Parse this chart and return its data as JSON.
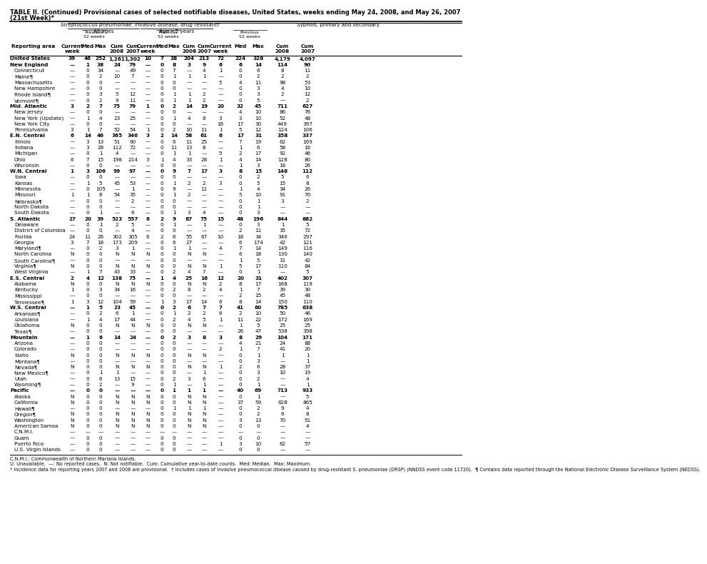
{
  "title_line1": "TABLE II. (Continued) Provisional cases of selected notifiable diseases, United States, weeks ending May 24, 2008, and May 26, 2007",
  "title_line2": "(21st Week)*",
  "col_group1": "Streptococcus pneumoniae, invasive disease, drug resistant†",
  "col_group1a": "All ages",
  "col_group1b": "Age <5 years",
  "col_group2": "Syphilis, primary and secondary",
  "rows": [
    [
      "United States",
      "39",
      "46",
      "252",
      "1,261",
      "1,302",
      "10",
      "7",
      "38",
      "204",
      "213",
      "72",
      "224",
      "328",
      "4,179",
      "4,097"
    ],
    [
      "New England",
      "—",
      "1",
      "38",
      "24",
      "79",
      "—",
      "0",
      "8",
      "3",
      "9",
      "6",
      "6",
      "14",
      "114",
      "90"
    ],
    [
      "Connecticut",
      "—",
      "0",
      "34",
      "—",
      "49",
      "—",
      "0",
      "7",
      "—",
      "4",
      "1",
      "0",
      "6",
      "8",
      "11"
    ],
    [
      "Maine¶",
      "—",
      "0",
      "2",
      "10",
      "7",
      "—",
      "0",
      "1",
      "1",
      "1",
      "—",
      "0",
      "2",
      "2",
      "2"
    ],
    [
      "Massachusetts",
      "—",
      "0",
      "0",
      "—",
      "—",
      "—",
      "0",
      "0",
      "—",
      "—",
      "5",
      "4",
      "11",
      "98",
      "53"
    ],
    [
      "New Hampshire",
      "—",
      "0",
      "0",
      "—",
      "—",
      "—",
      "0",
      "0",
      "—",
      "—",
      "—",
      "0",
      "3",
      "4",
      "10"
    ],
    [
      "Rhode Island¶",
      "—",
      "0",
      "3",
      "5",
      "12",
      "—",
      "0",
      "1",
      "1",
      "2",
      "—",
      "0",
      "3",
      "2",
      "12"
    ],
    [
      "Vermont¶",
      "—",
      "0",
      "2",
      "9",
      "11",
      "—",
      "0",
      "1",
      "1",
      "2",
      "—",
      "0",
      "5",
      "—",
      "2"
    ],
    [
      "Mid. Atlantic",
      "3",
      "2",
      "7",
      "75",
      "79",
      "1",
      "0",
      "2",
      "14",
      "19",
      "20",
      "32",
      "45",
      "711",
      "627"
    ],
    [
      "New Jersey",
      "—",
      "0",
      "0",
      "—",
      "—",
      "—",
      "0",
      "0",
      "—",
      "—",
      "—",
      "4",
      "10",
      "86",
      "76"
    ],
    [
      "New York (Upstate)",
      "—",
      "1",
      "4",
      "23",
      "25",
      "—",
      "0",
      "1",
      "4",
      "8",
      "3",
      "3",
      "10",
      "52",
      "48"
    ],
    [
      "New York City",
      "—",
      "0",
      "0",
      "—",
      "—",
      "—",
      "0",
      "0",
      "—",
      "—",
      "16",
      "17",
      "30",
      "449",
      "397"
    ],
    [
      "Pennsylvania",
      "3",
      "1",
      "7",
      "52",
      "54",
      "1",
      "0",
      "2",
      "10",
      "11",
      "1",
      "5",
      "12",
      "124",
      "106"
    ],
    [
      "E.N. Central",
      "6",
      "14",
      "46",
      "365",
      "346",
      "3",
      "2",
      "14",
      "58",
      "61",
      "6",
      "17",
      "31",
      "358",
      "337"
    ],
    [
      "Illinois",
      "—",
      "3",
      "13",
      "51",
      "60",
      "—",
      "0",
      "6",
      "11",
      "25",
      "—",
      "7",
      "19",
      "62",
      "169"
    ],
    [
      "Indiana",
      "—",
      "3",
      "28",
      "112",
      "72",
      "—",
      "0",
      "11",
      "13",
      "8",
      "—",
      "1",
      "6",
      "58",
      "16"
    ],
    [
      "Michigan",
      "—",
      "0",
      "1",
      "4",
      "—",
      "—",
      "0",
      "1",
      "1",
      "—",
      "5",
      "2",
      "17",
      "92",
      "46"
    ],
    [
      "Ohio",
      "6",
      "7",
      "15",
      "198",
      "214",
      "3",
      "1",
      "4",
      "33",
      "28",
      "1",
      "4",
      "14",
      "128",
      "80"
    ],
    [
      "Wisconsin",
      "—",
      "0",
      "0",
      "—",
      "—",
      "—",
      "0",
      "0",
      "—",
      "—",
      "—",
      "1",
      "3",
      "18",
      "26"
    ],
    [
      "W.N. Central",
      "1",
      "3",
      "106",
      "99",
      "97",
      "—",
      "0",
      "9",
      "7",
      "17",
      "3",
      "8",
      "15",
      "148",
      "112"
    ],
    [
      "Iowa",
      "—",
      "0",
      "0",
      "—",
      "—",
      "—",
      "0",
      "0",
      "—",
      "—",
      "—",
      "0",
      "2",
      "5",
      "6"
    ],
    [
      "Kansas",
      "—",
      "1",
      "5",
      "45",
      "53",
      "—",
      "0",
      "1",
      "2",
      "2",
      "3",
      "0",
      "5",
      "15",
      "8"
    ],
    [
      "Minnesota",
      "—",
      "0",
      "105",
      "—",
      "1",
      "—",
      "0",
      "9",
      "—",
      "11",
      "—",
      "1",
      "4",
      "34",
      "26"
    ],
    [
      "Missouri",
      "1",
      "1",
      "8",
      "54",
      "35",
      "—",
      "0",
      "1",
      "2",
      "—",
      "—",
      "5",
      "10",
      "91",
      "70"
    ],
    [
      "Nebraska¶",
      "—",
      "0",
      "0",
      "—",
      "2",
      "—",
      "0",
      "0",
      "—",
      "—",
      "—",
      "0",
      "1",
      "3",
      "2"
    ],
    [
      "North Dakota",
      "—",
      "0",
      "0",
      "—",
      "—",
      "—",
      "0",
      "0",
      "—",
      "—",
      "—",
      "0",
      "1",
      "—",
      "—"
    ],
    [
      "South Dakota",
      "—",
      "0",
      "1",
      "—",
      "6",
      "—",
      "0",
      "1",
      "3",
      "4",
      "—",
      "0",
      "3",
      "—",
      "—"
    ],
    [
      "S. Atlantic",
      "27",
      "20",
      "39",
      "523",
      "557",
      "6",
      "2",
      "9",
      "87",
      "75",
      "15",
      "48",
      "196",
      "844",
      "882"
    ],
    [
      "Delaware",
      "—",
      "0",
      "1",
      "2",
      "5",
      "—",
      "0",
      "1",
      "—",
      "1",
      "—",
      "0",
      "3",
      "1",
      "5"
    ],
    [
      "District of Columbia",
      "—",
      "0",
      "0",
      "—",
      "4",
      "—",
      "0",
      "0",
      "—",
      "—",
      "—",
      "2",
      "11",
      "35",
      "72"
    ],
    [
      "Florida",
      "24",
      "11",
      "26",
      "302",
      "305",
      "6",
      "2",
      "6",
      "55",
      "67",
      "10",
      "18",
      "34",
      "346",
      "297"
    ],
    [
      "Georgia",
      "3",
      "7",
      "18",
      "173",
      "209",
      "—",
      "0",
      "6",
      "27",
      "—",
      "—",
      "6",
      "174",
      "42",
      "121"
    ],
    [
      "Maryland¶",
      "—",
      "0",
      "2",
      "3",
      "1",
      "—",
      "0",
      "1",
      "1",
      "—",
      "4",
      "7",
      "14",
      "149",
      "116"
    ],
    [
      "North Carolina",
      "N",
      "0",
      "0",
      "N",
      "N",
      "N",
      "0",
      "0",
      "N",
      "N",
      "—",
      "6",
      "18",
      "130",
      "140"
    ],
    [
      "South Carolina¶",
      "—",
      "0",
      "0",
      "—",
      "—",
      "—",
      "0",
      "0",
      "—",
      "—",
      "—",
      "1",
      "5",
      "31",
      "42"
    ],
    [
      "Virginia¶",
      "N",
      "0",
      "0",
      "N",
      "N",
      "N",
      "0",
      "0",
      "N",
      "N",
      "1",
      "5",
      "17",
      "110",
      "84"
    ],
    [
      "West Virginia",
      "—",
      "1",
      "7",
      "43",
      "33",
      "—",
      "0",
      "2",
      "4",
      "7",
      "—",
      "0",
      "1",
      "—",
      "5"
    ],
    [
      "E.S. Central",
      "2",
      "4",
      "12",
      "138",
      "75",
      "—",
      "1",
      "4",
      "25",
      "16",
      "12",
      "20",
      "31",
      "402",
      "307"
    ],
    [
      "Alabama",
      "N",
      "0",
      "0",
      "N",
      "N",
      "N",
      "0",
      "0",
      "N",
      "N",
      "2",
      "8",
      "17",
      "168",
      "119"
    ],
    [
      "Kentucky",
      "1",
      "0",
      "3",
      "34",
      "16",
      "—",
      "0",
      "2",
      "8",
      "2",
      "4",
      "1",
      "7",
      "39",
      "30"
    ],
    [
      "Mississippi",
      "—",
      "0",
      "0",
      "—",
      "—",
      "—",
      "0",
      "0",
      "—",
      "—",
      "—",
      "2",
      "15",
      "45",
      "48"
    ],
    [
      "Tennessee¶",
      "1",
      "3",
      "12",
      "104",
      "59",
      "—",
      "1",
      "3",
      "17",
      "14",
      "6",
      "8",
      "14",
      "150",
      "110"
    ],
    [
      "W.S. Central",
      "—",
      "1",
      "5",
      "23",
      "45",
      "—",
      "0",
      "2",
      "6",
      "7",
      "7",
      "41",
      "60",
      "785",
      "638"
    ],
    [
      "Arkansas¶",
      "—",
      "0",
      "2",
      "6",
      "1",
      "—",
      "0",
      "1",
      "2",
      "2",
      "6",
      "2",
      "10",
      "50",
      "46"
    ],
    [
      "Louisiana",
      "—",
      "1",
      "4",
      "17",
      "44",
      "—",
      "0",
      "2",
      "4",
      "5",
      "1",
      "11",
      "22",
      "172",
      "169"
    ],
    [
      "Oklahoma",
      "N",
      "0",
      "0",
      "N",
      "N",
      "N",
      "0",
      "0",
      "N",
      "N",
      "—",
      "1",
      "5",
      "25",
      "25"
    ],
    [
      "Texas¶",
      "—",
      "0",
      "0",
      "—",
      "—",
      "—",
      "0",
      "0",
      "—",
      "—",
      "—",
      "26",
      "47",
      "538",
      "398"
    ],
    [
      "Mountain",
      "—",
      "1",
      "6",
      "14",
      "24",
      "—",
      "0",
      "2",
      "3",
      "8",
      "3",
      "8",
      "29",
      "104",
      "171"
    ],
    [
      "Arizona",
      "—",
      "0",
      "0",
      "—",
      "—",
      "—",
      "0",
      "0",
      "—",
      "—",
      "—",
      "4",
      "21",
      "24",
      "88"
    ],
    [
      "Colorado",
      "—",
      "0",
      "0",
      "—",
      "—",
      "—",
      "0",
      "0",
      "—",
      "—",
      "2",
      "1",
      "7",
      "41",
      "20"
    ],
    [
      "Idaho",
      "N",
      "0",
      "0",
      "N",
      "N",
      "N",
      "0",
      "0",
      "N",
      "N",
      "—",
      "0",
      "1",
      "1",
      "1"
    ],
    [
      "Montana¶",
      "—",
      "0",
      "0",
      "—",
      "—",
      "—",
      "0",
      "0",
      "—",
      "—",
      "—",
      "0",
      "3",
      "—",
      "1"
    ],
    [
      "Nevada¶",
      "N",
      "0",
      "0",
      "N",
      "N",
      "N",
      "0",
      "0",
      "N",
      "N",
      "1",
      "2",
      "6",
      "28",
      "37"
    ],
    [
      "New Mexico¶",
      "—",
      "0",
      "1",
      "1",
      "—",
      "—",
      "0",
      "0",
      "—",
      "1",
      "—",
      "0",
      "3",
      "10",
      "19"
    ],
    [
      "Utah",
      "—",
      "0",
      "6",
      "13",
      "15",
      "—",
      "0",
      "2",
      "3",
      "6",
      "—",
      "0",
      "2",
      "—",
      "4"
    ],
    [
      "Wyoming¶",
      "—",
      "0",
      "2",
      "—",
      "9",
      "—",
      "0",
      "1",
      "—",
      "1",
      "—",
      "0",
      "1",
      "—",
      "1"
    ],
    [
      "Pacific",
      "—",
      "0",
      "0",
      "—",
      "—",
      "—",
      "0",
      "1",
      "1",
      "1",
      "—",
      "40",
      "69",
      "713",
      "933"
    ],
    [
      "Alaska",
      "N",
      "0",
      "0",
      "N",
      "N",
      "N",
      "0",
      "0",
      "N",
      "N",
      "—",
      "0",
      "1",
      "—",
      "5"
    ],
    [
      "California",
      "N",
      "0",
      "0",
      "N",
      "N",
      "N",
      "0",
      "0",
      "N",
      "N",
      "—",
      "37",
      "59",
      "628",
      "865"
    ],
    [
      "Hawaii¶",
      "—",
      "0",
      "0",
      "—",
      "—",
      "—",
      "0",
      "1",
      "1",
      "1",
      "—",
      "0",
      "2",
      "9",
      "4"
    ],
    [
      "Oregon¶",
      "N",
      "0",
      "0",
      "N",
      "N",
      "N",
      "0",
      "0",
      "N",
      "N",
      "—",
      "0",
      "2",
      "6",
      "8"
    ],
    [
      "Washington",
      "N",
      "0",
      "0",
      "N",
      "N",
      "N",
      "0",
      "0",
      "N",
      "N",
      "—",
      "3",
      "13",
      "70",
      "51"
    ],
    [
      "American Samoa",
      "N",
      "0",
      "0",
      "N",
      "N",
      "N",
      "0",
      "0",
      "N",
      "N",
      "—",
      "0",
      "0",
      "—",
      "4"
    ],
    [
      "C.N.M.I.",
      "—",
      "—",
      "—",
      "—",
      "—",
      "—",
      "—",
      "—",
      "—",
      "—",
      "—",
      "—",
      "—",
      "—",
      "—"
    ],
    [
      "Guam",
      "—",
      "0",
      "0",
      "—",
      "—",
      "—",
      "0",
      "0",
      "—",
      "—",
      "—",
      "0",
      "0",
      "—",
      "—"
    ],
    [
      "Puerto Rico",
      "—",
      "0",
      "0",
      "—",
      "—",
      "—",
      "0",
      "0",
      "—",
      "—",
      "1",
      "3",
      "10",
      "62",
      "57"
    ],
    [
      "U.S. Virgin Islands",
      "—",
      "0",
      "0",
      "—",
      "—",
      "—",
      "0",
      "0",
      "—",
      "—",
      "—",
      "0",
      "0",
      "—",
      "—"
    ]
  ],
  "bold_rows": [
    "United States",
    "New England",
    "Mid. Atlantic",
    "E.N. Central",
    "W.N. Central",
    "S. Atlantic",
    "E.S. Central",
    "W.S. Central",
    "Mountain",
    "Pacific"
  ],
  "footnotes": [
    "C.N.M.I.: Commonwealth of Northern Mariana Islands.",
    "U: Unavailable.  —: No reported cases.  N: Not notifiable.  Cum: Cumulative year-to-date counts.  Med: Median.  Max: Maximum.",
    "* Incidence data for reporting years 2007 and 2008 are provisional.  † Includes cases of invasive pneumococcal disease caused by drug-resistant S. pneumoniae (DRSP) (NNDSS event code 11720).  ¶ Contains data reported through the National Electronic Disease Surveillance System (NEDSS)."
  ]
}
